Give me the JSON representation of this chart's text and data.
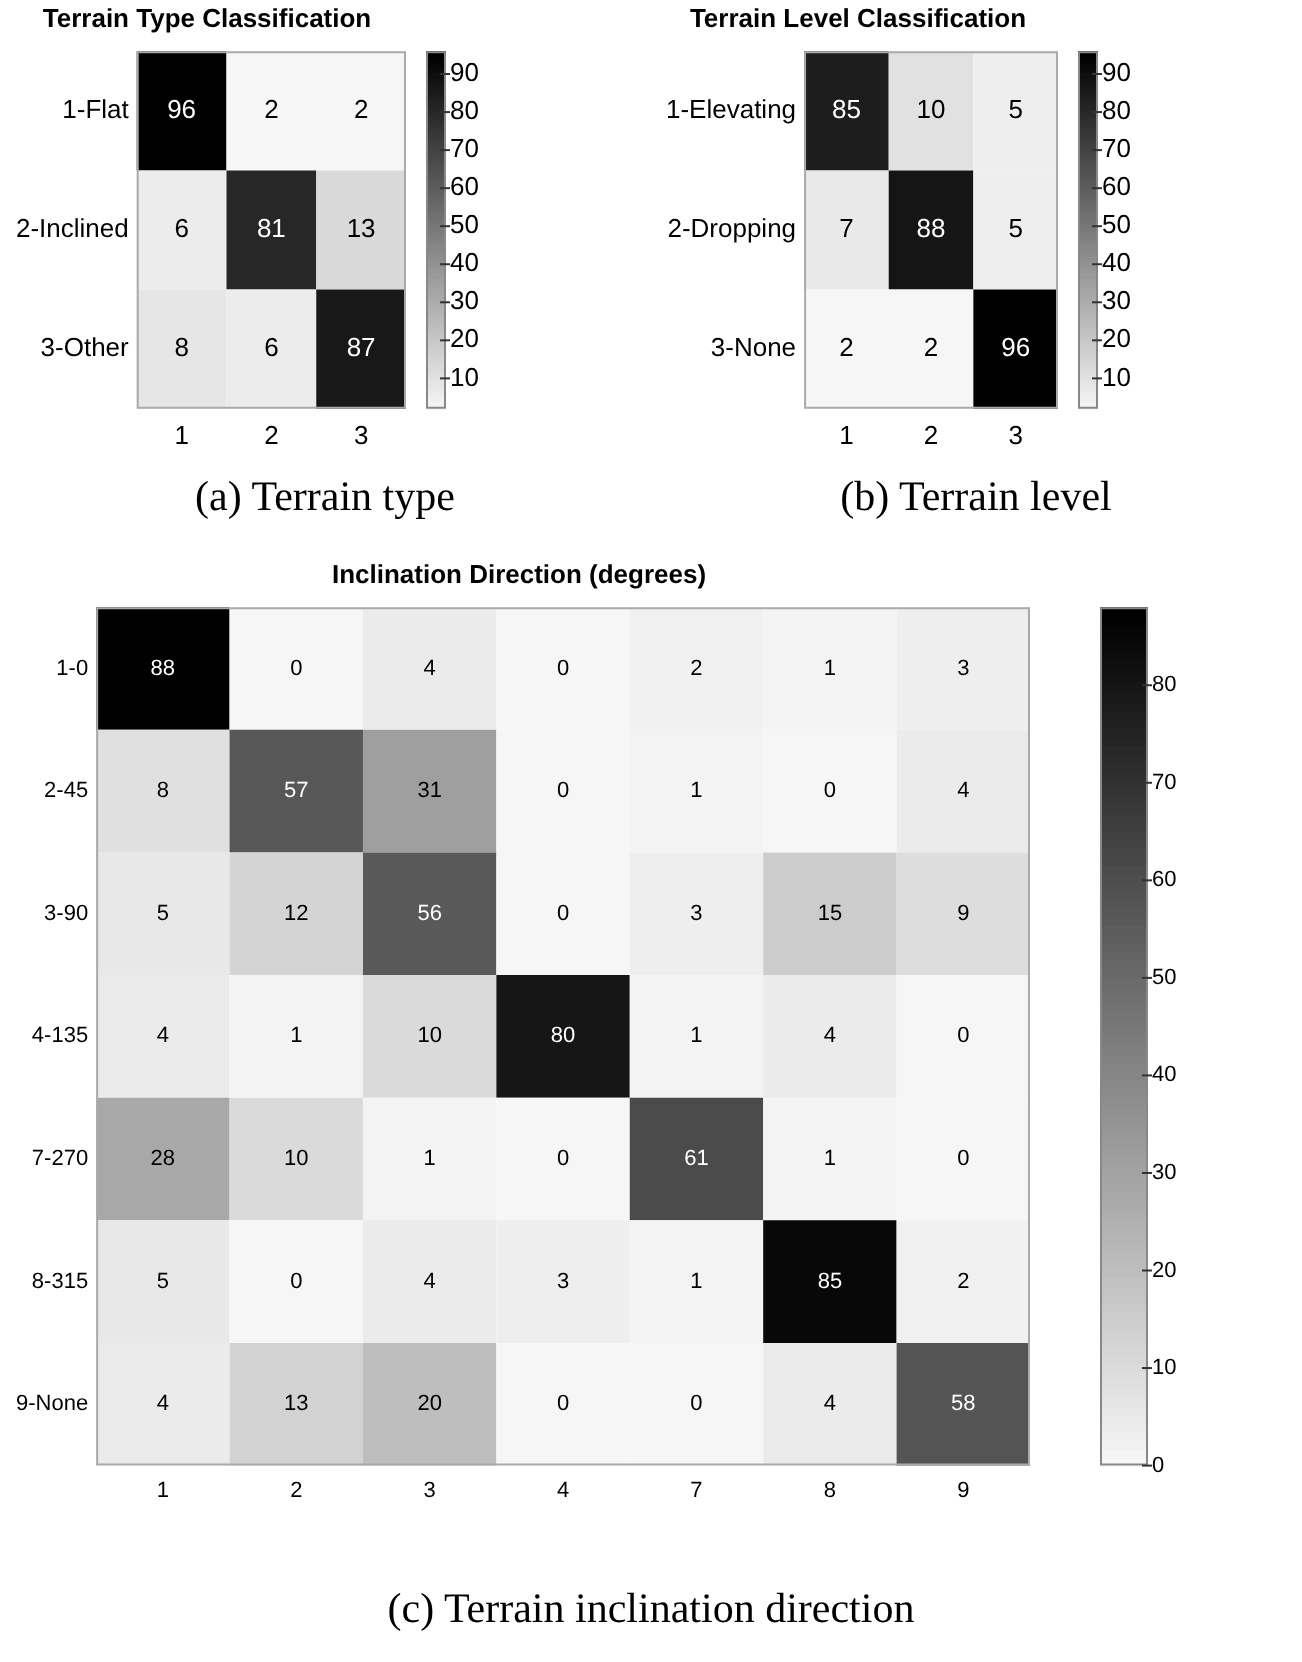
{
  "chart_data": [
    {
      "type": "heatmap",
      "title": "Terrain Type Classification",
      "categories": [
        "1",
        "2",
        "3"
      ],
      "y_categories": [
        "1-Flat",
        "2-Inclined",
        "3-Other"
      ],
      "cells": [
        [
          96,
          2,
          2
        ],
        [
          6,
          81,
          13
        ],
        [
          8,
          6,
          87
        ]
      ],
      "clim": [
        2,
        96
      ],
      "cticks": [
        10,
        20,
        30,
        40,
        50,
        60,
        70,
        80,
        90
      ],
      "data_labels": true,
      "grid": false,
      "annotations": [
        "(a) Terrain type"
      ]
    },
    {
      "type": "heatmap",
      "title": "Terrain Level Classification",
      "categories": [
        "1",
        "2",
        "3"
      ],
      "y_categories": [
        "1-Elevating",
        "2-Dropping",
        "3-None"
      ],
      "cells": [
        [
          85,
          10,
          5
        ],
        [
          7,
          88,
          5
        ],
        [
          2,
          2,
          96
        ]
      ],
      "clim": [
        2,
        96
      ],
      "cticks": [
        10,
        20,
        30,
        40,
        50,
        60,
        70,
        80,
        90
      ],
      "data_labels": true,
      "grid": false,
      "annotations": [
        "(b) Terrain level"
      ]
    },
    {
      "type": "heatmap",
      "title": "Inclination Direction (degrees)",
      "categories": [
        "1",
        "2",
        "3",
        "4",
        "7",
        "8",
        "9"
      ],
      "y_categories": [
        "1-0",
        "2-45",
        "3-90",
        "4-135",
        "7-270",
        "8-315",
        "9-None"
      ],
      "cells": [
        [
          88,
          0,
          4,
          0,
          2,
          1,
          3
        ],
        [
          8,
          57,
          31,
          0,
          1,
          0,
          4
        ],
        [
          5,
          12,
          56,
          0,
          3,
          15,
          9
        ],
        [
          4,
          1,
          10,
          80,
          1,
          4,
          0
        ],
        [
          28,
          10,
          1,
          0,
          61,
          1,
          0
        ],
        [
          5,
          0,
          4,
          3,
          1,
          85,
          2
        ],
        [
          4,
          13,
          20,
          0,
          0,
          4,
          58
        ]
      ],
      "clim": [
        0,
        88
      ],
      "cticks": [
        0,
        10,
        20,
        30,
        40,
        50,
        60,
        70,
        80
      ],
      "data_labels": true,
      "grid": false,
      "annotations": [
        "(c) Terrain inclination direction"
      ]
    }
  ]
}
